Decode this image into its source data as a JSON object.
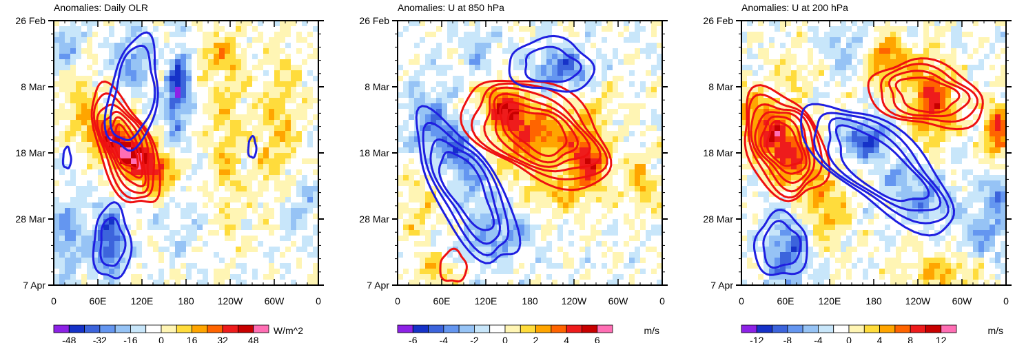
{
  "figure": {
    "description_free": true
  },
  "palette": [
    "#8d22e6",
    "#1632c8",
    "#3c64dc",
    "#6496f0",
    "#96c3f5",
    "#c8e6fa",
    "#ffffff",
    "#fff5b4",
    "#ffdc3c",
    "#ffa500",
    "#ff6400",
    "#ee1c1c",
    "#c80000",
    "#ff6eb4"
  ],
  "contour_colors": {
    "positive": "#ee1111",
    "negative": "#1f1fe0"
  },
  "chart_data": [
    {
      "type": "heatmap",
      "title": "Anomalies: Daily OLR",
      "x_tick_labels": [
        "0",
        "60E",
        "120E",
        "180",
        "120W",
        "60W",
        "0"
      ],
      "x_range_deg": [
        0,
        360
      ],
      "y_tick_labels": [
        "26 Feb",
        "8 Mar",
        "18 Mar",
        "28 Mar",
        "7 Apr"
      ],
      "y_range_days": [
        0,
        40
      ],
      "colorbar": {
        "labels": [
          "-48",
          "-32",
          "-16",
          "0",
          "16",
          "32",
          "48"
        ],
        "units": "W/m^2"
      },
      "contour_overlay": true
    },
    {
      "type": "heatmap",
      "title": "Anomalies: U at 850 hPa",
      "x_tick_labels": [
        "0",
        "60E",
        "120E",
        "180",
        "120W",
        "60W",
        "0"
      ],
      "x_range_deg": [
        0,
        360
      ],
      "y_tick_labels": [
        "26 Feb",
        "8 Mar",
        "18 Mar",
        "28 Mar",
        "7 Apr"
      ],
      "y_range_days": [
        0,
        40
      ],
      "colorbar": {
        "labels": [
          "-6",
          "-4",
          "-2",
          "0",
          "2",
          "4",
          "6"
        ],
        "units": "m/s"
      },
      "contour_overlay": true
    },
    {
      "type": "heatmap",
      "title": "Anomalies: U at 200 hPa",
      "x_tick_labels": [
        "0",
        "60E",
        "120E",
        "180",
        "120W",
        "60W",
        "0"
      ],
      "x_range_deg": [
        0,
        360
      ],
      "y_tick_labels": [
        "26 Feb",
        "8 Mar",
        "18 Mar",
        "28 Mar",
        "7 Apr"
      ],
      "y_range_days": [
        0,
        40
      ],
      "colorbar": {
        "labels": [
          "-12",
          "-8",
          "-4",
          "0",
          "4",
          "8",
          "12"
        ],
        "units": "m/s"
      },
      "contour_overlay": true
    }
  ]
}
